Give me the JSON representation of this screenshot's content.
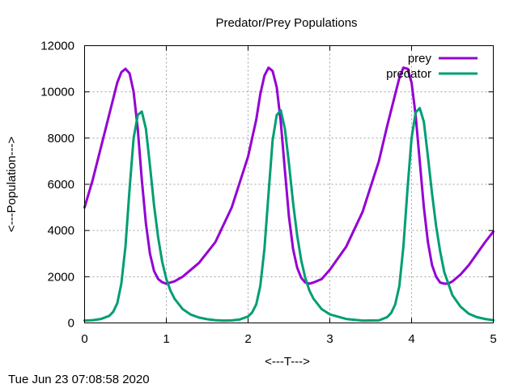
{
  "chart_data": {
    "type": "line",
    "title": "Predator/Prey Populations",
    "xlabel": "<---T--->",
    "ylabel": "<---Population--->",
    "xlim": [
      0,
      5
    ],
    "ylim": [
      0,
      12000
    ],
    "xticks": [
      "0",
      "1",
      "2",
      "3",
      "4",
      "5"
    ],
    "yticks": [
      "0",
      "2000",
      "4000",
      "6000",
      "8000",
      "10000",
      "12000"
    ],
    "grid": true,
    "legend_position": "top-right",
    "series": [
      {
        "name": "prey",
        "color": "#9400d3",
        "x": [
          0,
          0.1,
          0.2,
          0.3,
          0.4,
          0.45,
          0.5,
          0.55,
          0.6,
          0.65,
          0.7,
          0.75,
          0.8,
          0.85,
          0.9,
          0.95,
          1.0,
          1.1,
          1.2,
          1.4,
          1.6,
          1.8,
          2.0,
          2.1,
          2.15,
          2.2,
          2.25,
          2.3,
          2.35,
          2.4,
          2.45,
          2.5,
          2.55,
          2.6,
          2.65,
          2.7,
          2.75,
          2.8,
          2.9,
          3.0,
          3.2,
          3.4,
          3.6,
          3.7,
          3.8,
          3.85,
          3.9,
          3.95,
          4.0,
          4.05,
          4.1,
          4.15,
          4.2,
          4.25,
          4.3,
          4.35,
          4.4,
          4.45,
          4.5,
          4.6,
          4.7,
          4.8,
          4.9,
          5.0
        ],
        "y": [
          5000,
          6200,
          7600,
          9000,
          10400,
          10850,
          11000,
          10800,
          10000,
          8400,
          6200,
          4300,
          3000,
          2250,
          1900,
          1760,
          1700,
          1800,
          2000,
          2600,
          3500,
          5000,
          7200,
          8800,
          9900,
          10700,
          11050,
          10900,
          10200,
          8700,
          6600,
          4600,
          3200,
          2400,
          1950,
          1750,
          1700,
          1750,
          1900,
          2300,
          3300,
          4800,
          7000,
          8500,
          9900,
          10600,
          11050,
          11000,
          10400,
          9000,
          7000,
          5000,
          3500,
          2500,
          2000,
          1750,
          1700,
          1700,
          1800,
          2100,
          2500,
          3000,
          3500,
          3950
        ]
      },
      {
        "name": "predator",
        "color": "#009e73",
        "x": [
          0,
          0.1,
          0.2,
          0.3,
          0.35,
          0.4,
          0.45,
          0.5,
          0.55,
          0.6,
          0.65,
          0.7,
          0.75,
          0.8,
          0.85,
          0.9,
          0.95,
          1.0,
          1.05,
          1.1,
          1.2,
          1.3,
          1.4,
          1.5,
          1.6,
          1.7,
          1.8,
          1.9,
          2.0,
          2.05,
          2.1,
          2.15,
          2.2,
          2.25,
          2.3,
          2.35,
          2.4,
          2.45,
          2.5,
          2.55,
          2.6,
          2.65,
          2.7,
          2.75,
          2.8,
          2.9,
          3.0,
          3.2,
          3.4,
          3.6,
          3.7,
          3.75,
          3.8,
          3.85,
          3.9,
          3.95,
          4.0,
          4.05,
          4.1,
          4.15,
          4.2,
          4.25,
          4.3,
          4.35,
          4.4,
          4.5,
          4.6,
          4.7,
          4.8,
          4.9,
          5.0
        ],
        "y": [
          100,
          120,
          170,
          300,
          480,
          850,
          1700,
          3300,
          5800,
          8000,
          9000,
          9150,
          8400,
          6800,
          5100,
          3700,
          2650,
          1900,
          1400,
          1050,
          600,
          360,
          230,
          160,
          120,
          100,
          110,
          150,
          280,
          450,
          800,
          1600,
          3200,
          5600,
          7900,
          9000,
          9200,
          8400,
          6900,
          5200,
          3800,
          2700,
          1950,
          1400,
          1050,
          600,
          370,
          170,
          100,
          110,
          250,
          430,
          800,
          1600,
          3300,
          5800,
          8000,
          9100,
          9300,
          8700,
          7200,
          5600,
          4200,
          3100,
          2200,
          1200,
          700,
          400,
          250,
          170,
          120
        ]
      }
    ]
  },
  "footer": {
    "timestamp": "Tue Jun 23 07:08:58 2020"
  }
}
